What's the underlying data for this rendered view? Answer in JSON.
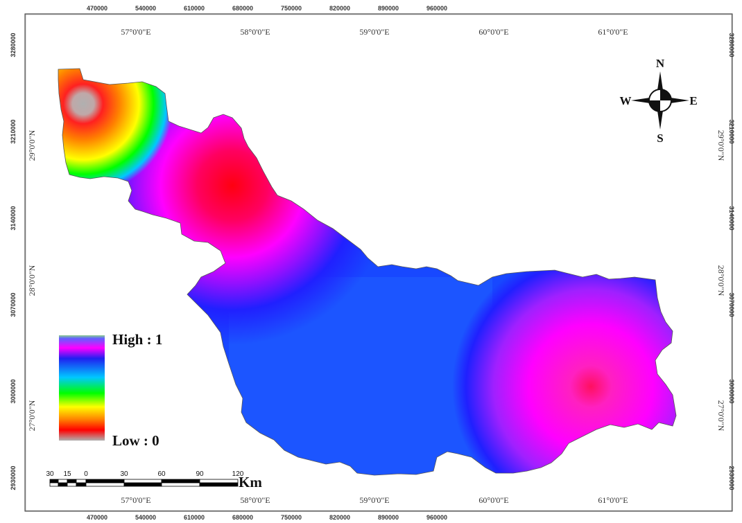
{
  "frame": {
    "x_ticks": [
      "470000",
      "540000",
      "610000",
      "680000",
      "750000",
      "820000",
      "890000",
      "960000"
    ],
    "y_ticks": [
      "3280000",
      "3210000",
      "3140000",
      "3070000",
      "3000000",
      "2930000"
    ],
    "lon_labels": [
      "57°0'0\"E",
      "58°0'0\"E",
      "59°0'0\"E",
      "60°0'0\"E",
      "61°0'0\"E"
    ],
    "lat_labels": [
      "29°0'0\"N",
      "28°0'0\"N",
      "27°0'0\"N"
    ]
  },
  "compass": {
    "n": "N",
    "s": "S",
    "e": "E",
    "w": "W"
  },
  "legend": {
    "high_label": "High : 1",
    "low_label": "Low : 0",
    "ramp_colors": [
      "#8ed18e",
      "#2020ff",
      "#ff00ff",
      "#2020f0",
      "#00c8ff",
      "#00ff00",
      "#ffff00",
      "#ff8000",
      "#ff0000",
      "#b0b0b0"
    ]
  },
  "scale_bar": {
    "ticks": [
      "30",
      "15",
      "0",
      "30",
      "60",
      "90",
      "120"
    ],
    "unit": "Km"
  },
  "surface": {
    "class_colors": {
      "high": "#ff00ff",
      "mid": "#0050ff",
      "low": "#b0b0b0"
    }
  }
}
